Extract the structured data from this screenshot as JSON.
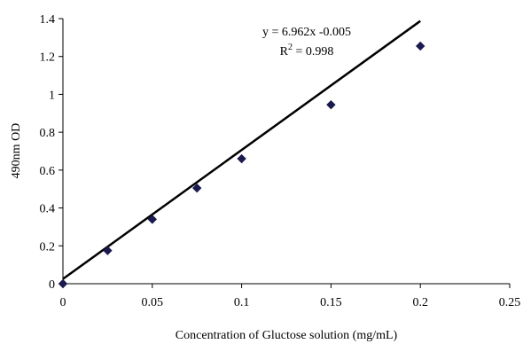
{
  "chart_data": {
    "type": "scatter",
    "title": "",
    "xlabel": "Concentration of Gluctose solution (mg/mL)",
    "ylabel": "490nm  OD",
    "xlim": [
      0,
      0.25
    ],
    "ylim": [
      0,
      1.4
    ],
    "x_ticks": [
      "0",
      "0.05",
      "0.1",
      "0.15",
      "0.2",
      "0.25"
    ],
    "y_ticks": [
      "0",
      "0.2",
      "0.4",
      "0.6",
      "0.8",
      "1",
      "1.2",
      "1.4"
    ],
    "grid": false,
    "legend": "none",
    "series": [
      {
        "x": [
          0,
          0.025,
          0.05,
          0.075,
          0.1,
          0.15,
          0.2
        ],
        "y": [
          0,
          0.175,
          0.34,
          0.505,
          0.66,
          0.945,
          1.255
        ],
        "marker": "diamond",
        "color": "#1a1a4e"
      }
    ],
    "trendline": {
      "type": "linear",
      "slope": 6.962,
      "intercept": -0.005,
      "x_range": [
        0,
        0.2
      ],
      "color": "#000000"
    },
    "annotations": {
      "equation": "y = 6.962x -0.005",
      "r2_prefix": "R",
      "r2_sup": "2",
      "r2_suffix": " = 0.998"
    }
  }
}
